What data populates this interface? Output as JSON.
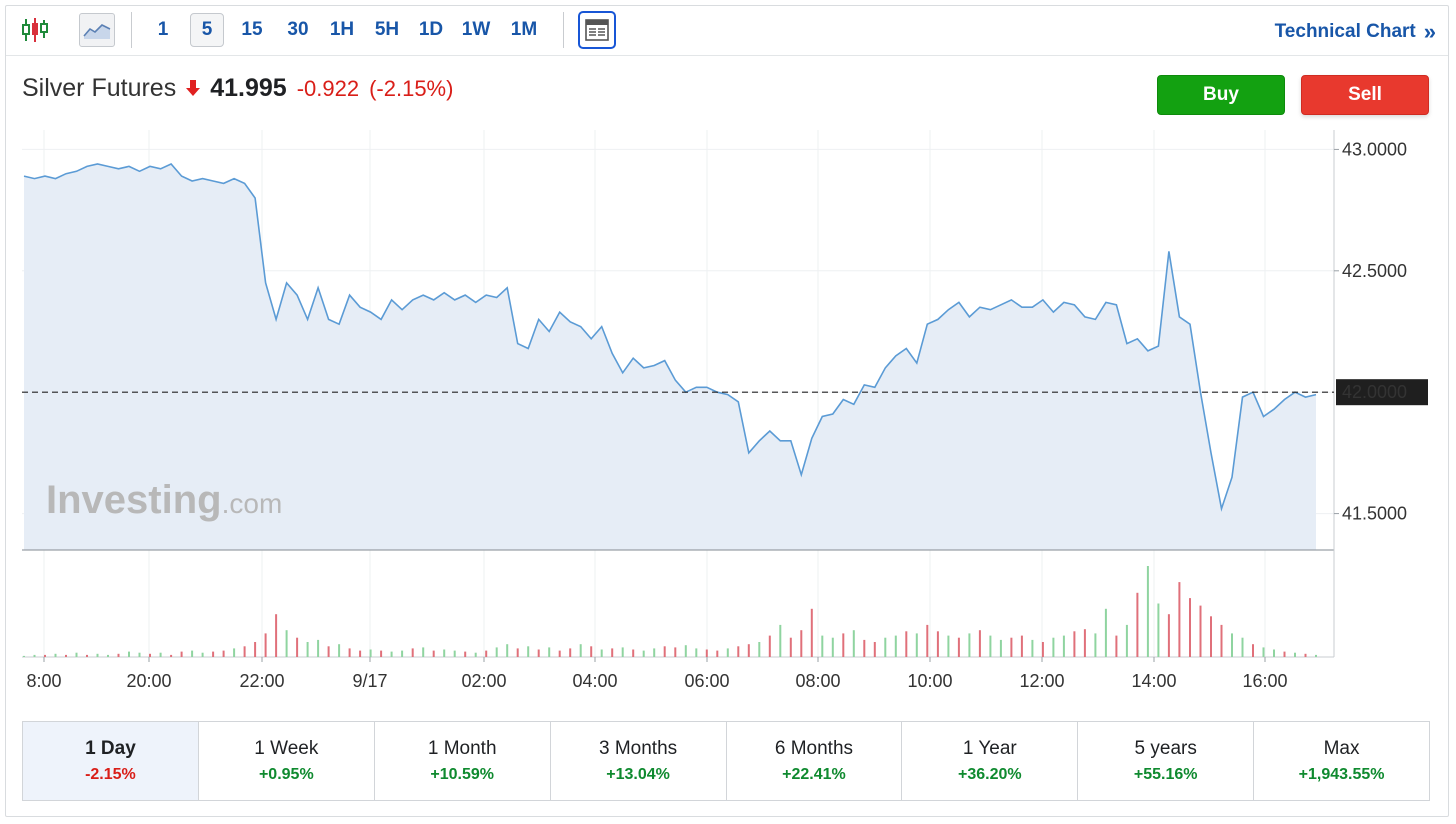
{
  "toolbar": {
    "intervals": [
      "1",
      "5",
      "15",
      "30",
      "1H",
      "5H",
      "1D",
      "1W",
      "1M"
    ],
    "active_interval": "5",
    "technical_link": "Technical Chart",
    "technical_chevron": "»"
  },
  "instrument": {
    "name": "Silver Futures",
    "direction_icon": "down-arrow-icon",
    "price": "41.995",
    "change": "-0.922",
    "change_pct": "(-2.15%)"
  },
  "actions": {
    "buy_label": "Buy",
    "sell_label": "Sell"
  },
  "watermark": {
    "brand": "Investing",
    "suffix": ".com"
  },
  "colors": {
    "line": "#5b9bd5",
    "area": "#e6edf6",
    "up": "#2ea043",
    "down": "#d9303c",
    "buy": "#13a111",
    "sell": "#e8392e",
    "link": "#1856a8",
    "last_price_bg": "#1f1f1f"
  },
  "chart_data": {
    "type": "line",
    "title": "",
    "xlabel": "",
    "ylabel": "",
    "x_ticks": [
      "8:00",
      "20:00",
      "22:00",
      "9/17",
      "02:00",
      "04:00",
      "06:00",
      "08:00",
      "10:00",
      "12:00",
      "14:00",
      "16:00"
    ],
    "y_ticks": [
      "43.0000",
      "42.5000",
      "41.5000"
    ],
    "ylim": [
      41.35,
      43.08
    ],
    "last_price_label": "42.0000",
    "last_price": 42.0,
    "grid": true,
    "series": [
      {
        "values": [
          42.89,
          42.88,
          42.89,
          42.88,
          42.9,
          42.91,
          42.93,
          42.94,
          42.93,
          42.92,
          42.93,
          42.91,
          42.93,
          42.92,
          42.94,
          42.89,
          42.87,
          42.88,
          42.87,
          42.86,
          42.88,
          42.86,
          42.8,
          42.45,
          42.3,
          42.45,
          42.4,
          42.3,
          42.43,
          42.3,
          42.28,
          42.4,
          42.35,
          42.33,
          42.3,
          42.38,
          42.34,
          42.38,
          42.4,
          42.38,
          42.41,
          42.38,
          42.4,
          42.37,
          42.4,
          42.39,
          42.43,
          42.2,
          42.18,
          42.3,
          42.25,
          42.33,
          42.29,
          42.27,
          42.22,
          42.27,
          42.16,
          42.08,
          42.14,
          42.1,
          42.11,
          42.13,
          42.05,
          42.0,
          42.02,
          42.02,
          42.0,
          41.99,
          41.96,
          41.75,
          41.8,
          41.84,
          41.8,
          41.8,
          41.66,
          41.81,
          41.9,
          41.91,
          41.97,
          41.95,
          42.03,
          42.02,
          42.1,
          42.15,
          42.18,
          42.12,
          42.28,
          42.3,
          42.34,
          42.37,
          42.31,
          42.35,
          42.34,
          42.36,
          42.38,
          42.35,
          42.35,
          42.38,
          42.33,
          42.37,
          42.36,
          42.31,
          42.3,
          42.37,
          42.36,
          42.2,
          42.22,
          42.17,
          42.19,
          42.58,
          42.31,
          42.28,
          42.0,
          41.75,
          41.52,
          41.65,
          41.98,
          42.0,
          41.9,
          41.93,
          41.97,
          42.0,
          41.98,
          41.99
        ],
        "note": "approx 5-minute closes from 8:00 (9/16) to 16:45 (9/17)"
      },
      {
        "name": "",
        "type": "volume",
        "values": [
          1,
          2,
          2,
          3,
          2,
          4,
          2,
          3,
          2,
          3,
          5,
          4,
          3,
          4,
          2,
          5,
          6,
          4,
          5,
          6,
          8,
          10,
          14,
          22,
          40,
          25,
          18,
          14,
          16,
          10,
          12,
          8,
          6,
          7,
          6,
          5,
          6,
          8,
          9,
          6,
          7,
          6,
          5,
          4,
          6,
          9,
          12,
          8,
          10,
          7,
          9,
          6,
          8,
          12,
          10,
          7,
          8,
          9,
          7,
          6,
          8,
          10,
          9,
          11,
          8,
          7,
          6,
          8,
          10,
          12,
          14,
          20,
          30,
          18,
          25,
          45,
          20,
          18,
          22,
          25,
          16,
          14,
          18,
          20,
          24,
          22,
          30,
          24,
          20,
          18,
          22,
          25,
          20,
          16,
          18,
          20,
          16,
          14,
          18,
          20,
          24,
          26,
          22,
          45,
          20,
          30,
          60,
          85,
          50,
          40,
          70,
          55,
          48,
          38,
          30,
          22,
          18,
          12,
          9,
          7,
          5,
          4,
          3,
          2
        ],
        "up": [
          1,
          1,
          0,
          1,
          0,
          1,
          0,
          1,
          1,
          0,
          1,
          1,
          0,
          1,
          0,
          0,
          1,
          1,
          0,
          0,
          1,
          0,
          0,
          0,
          0,
          1,
          0,
          1,
          1,
          0,
          1,
          0,
          0,
          1,
          0,
          1,
          1,
          0,
          1,
          0,
          1,
          1,
          0,
          1,
          0,
          1,
          1,
          0,
          1,
          0,
          1,
          0,
          0,
          1,
          0,
          1,
          0,
          1,
          0,
          1,
          1,
          0,
          0,
          1,
          1,
          0,
          0,
          1,
          0,
          0,
          1,
          0,
          1,
          0,
          0,
          0,
          1,
          1,
          0,
          1,
          0,
          0,
          1,
          1,
          0,
          1,
          0,
          0,
          1,
          0,
          1,
          0,
          1,
          1,
          0,
          0,
          1,
          0,
          1,
          1,
          0,
          0,
          1,
          1,
          0,
          1,
          0,
          1,
          1,
          0,
          0,
          0,
          0,
          0,
          0,
          1,
          1,
          0,
          1,
          1,
          0,
          1,
          0,
          1
        ]
      }
    ]
  },
  "periods": [
    {
      "label": "1 Day",
      "value": "-2.15%",
      "sign": "neg",
      "active": true
    },
    {
      "label": "1 Week",
      "value": "+0.95%",
      "sign": "pos",
      "active": false
    },
    {
      "label": "1 Month",
      "value": "+10.59%",
      "sign": "pos",
      "active": false
    },
    {
      "label": "3 Months",
      "value": "+13.04%",
      "sign": "pos",
      "active": false
    },
    {
      "label": "6 Months",
      "value": "+22.41%",
      "sign": "pos",
      "active": false
    },
    {
      "label": "1 Year",
      "value": "+36.20%",
      "sign": "pos",
      "active": false
    },
    {
      "label": "5 years",
      "value": "+55.16%",
      "sign": "pos",
      "active": false
    },
    {
      "label": "Max",
      "value": "+1,943.55%",
      "sign": "pos",
      "active": false
    }
  ]
}
